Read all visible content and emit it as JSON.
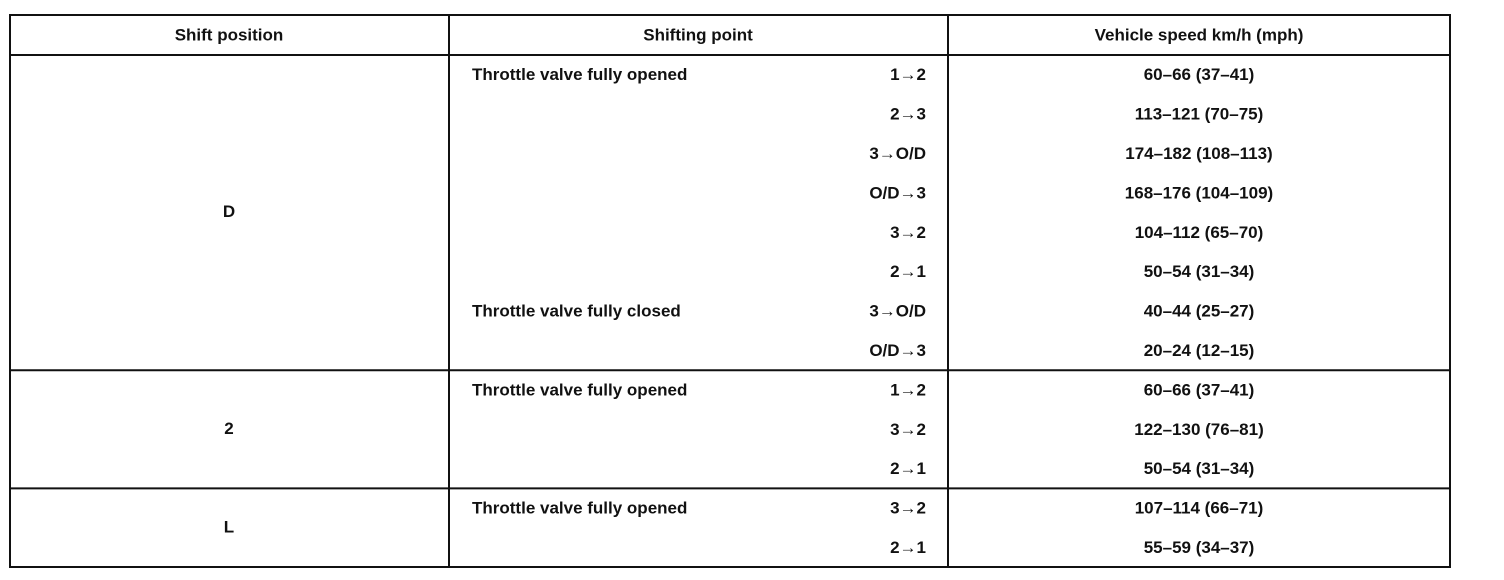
{
  "table": {
    "header": [
      "Shift position",
      "Shifting point",
      "Vehicle speed km/h (mph)"
    ],
    "groups": [
      {
        "position": "D",
        "conditions": [
          {
            "label": "Throttle valve fully opened",
            "shifts": [
              {
                "shift": "1→2",
                "speed": "60–66 (37–41)"
              },
              {
                "shift": "2→3",
                "speed": "113–121 (70–75)"
              },
              {
                "shift": "3→O/D",
                "speed": "174–182 (108–113)"
              },
              {
                "shift": "O/D→3",
                "speed": "168–176 (104–109)"
              },
              {
                "shift": "3→2",
                "speed": "104–112 (65–70)"
              },
              {
                "shift": "2→1",
                "speed": "50–54 (31–34)"
              }
            ]
          },
          {
            "label": "Throttle valve fully closed",
            "shifts": [
              {
                "shift": "3→O/D",
                "speed": "40–44 (25–27)"
              },
              {
                "shift": "O/D→3",
                "speed": "20–24 (12–15)"
              }
            ]
          }
        ]
      },
      {
        "position": "2",
        "conditions": [
          {
            "label": "Throttle valve fully opened",
            "shifts": [
              {
                "shift": "1→2",
                "speed": "60–66 (37–41)"
              },
              {
                "shift": "3→2",
                "speed": "122–130 (76–81)"
              },
              {
                "shift": "2→1",
                "speed": "50–54 (31–34)"
              }
            ]
          }
        ]
      },
      {
        "position": "L",
        "conditions": [
          {
            "label": "Throttle valve fully opened",
            "shifts": [
              {
                "shift": "3→2",
                "speed": "107–114 (66–71)"
              },
              {
                "shift": "2→1",
                "speed": "55–59 (34–37)"
              }
            ]
          }
        ]
      }
    ]
  }
}
